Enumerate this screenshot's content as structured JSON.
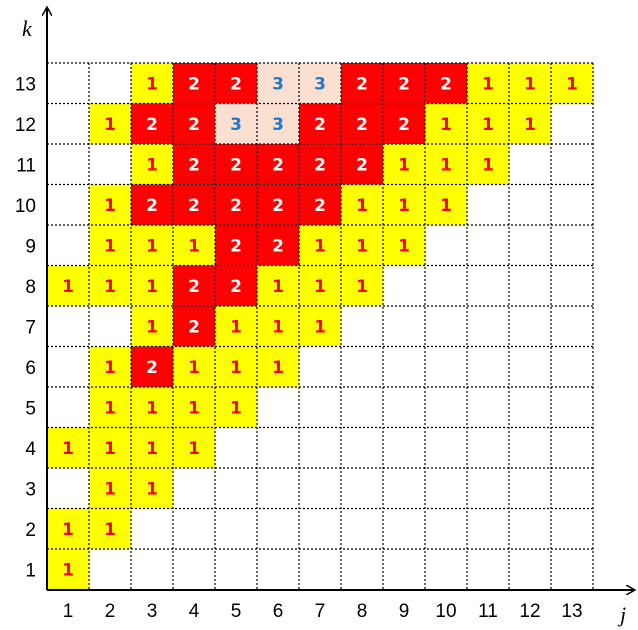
{
  "axes": {
    "x_label": "j",
    "y_label": "k",
    "x_ticks": [
      "1",
      "2",
      "3",
      "4",
      "5",
      "6",
      "7",
      "8",
      "9",
      "10",
      "11",
      "12",
      "13"
    ],
    "y_ticks": [
      "1",
      "2",
      "3",
      "4",
      "5",
      "6",
      "7",
      "8",
      "9",
      "10",
      "11",
      "12",
      "13"
    ]
  },
  "colors": {
    "level_1_fill": "#ffff00",
    "level_1_text": "#ff0000",
    "level_2_fill": "#ff0000",
    "level_2_text": "#ffffff",
    "level_3_fill": "#fbe0d2",
    "level_3_text": "#1f78c8",
    "grid": "#000000"
  },
  "chart_data": {
    "type": "heatmap",
    "xlabel": "j",
    "ylabel": "k",
    "x_categories": [
      1,
      2,
      3,
      4,
      5,
      6,
      7,
      8,
      9,
      10,
      11,
      12,
      13
    ],
    "y_categories": [
      1,
      2,
      3,
      4,
      5,
      6,
      7,
      8,
      9,
      10,
      11,
      12,
      13
    ],
    "rows_top_to_bottom": [
      {
        "k": 13,
        "values": [
          0,
          0,
          1,
          2,
          2,
          3,
          3,
          2,
          2,
          2,
          1,
          1,
          1
        ]
      },
      {
        "k": 12,
        "values": [
          0,
          1,
          2,
          2,
          3,
          3,
          2,
          2,
          2,
          1,
          1,
          1,
          0
        ]
      },
      {
        "k": 11,
        "values": [
          0,
          0,
          1,
          2,
          2,
          2,
          2,
          2,
          1,
          1,
          1,
          0,
          0
        ]
      },
      {
        "k": 10,
        "values": [
          0,
          1,
          2,
          2,
          2,
          2,
          2,
          1,
          1,
          1,
          0,
          0,
          0
        ]
      },
      {
        "k": 9,
        "values": [
          0,
          1,
          1,
          1,
          2,
          2,
          1,
          1,
          1,
          0,
          0,
          0,
          0
        ]
      },
      {
        "k": 8,
        "values": [
          1,
          1,
          1,
          2,
          2,
          1,
          1,
          1,
          0,
          0,
          0,
          0,
          0
        ]
      },
      {
        "k": 7,
        "values": [
          0,
          0,
          1,
          2,
          1,
          1,
          1,
          0,
          0,
          0,
          0,
          0,
          0
        ]
      },
      {
        "k": 6,
        "values": [
          0,
          1,
          2,
          1,
          1,
          1,
          0,
          0,
          0,
          0,
          0,
          0,
          0
        ]
      },
      {
        "k": 5,
        "values": [
          0,
          1,
          1,
          1,
          1,
          0,
          0,
          0,
          0,
          0,
          0,
          0,
          0
        ]
      },
      {
        "k": 4,
        "values": [
          1,
          1,
          1,
          1,
          0,
          0,
          0,
          0,
          0,
          0,
          0,
          0,
          0
        ]
      },
      {
        "k": 3,
        "values": [
          0,
          1,
          1,
          0,
          0,
          0,
          0,
          0,
          0,
          0,
          0,
          0,
          0
        ]
      },
      {
        "k": 2,
        "values": [
          1,
          1,
          0,
          0,
          0,
          0,
          0,
          0,
          0,
          0,
          0,
          0,
          0
        ]
      },
      {
        "k": 1,
        "values": [
          1,
          0,
          0,
          0,
          0,
          0,
          0,
          0,
          0,
          0,
          0,
          0,
          0
        ]
      }
    ],
    "legend": "none",
    "grid": "dotted"
  }
}
